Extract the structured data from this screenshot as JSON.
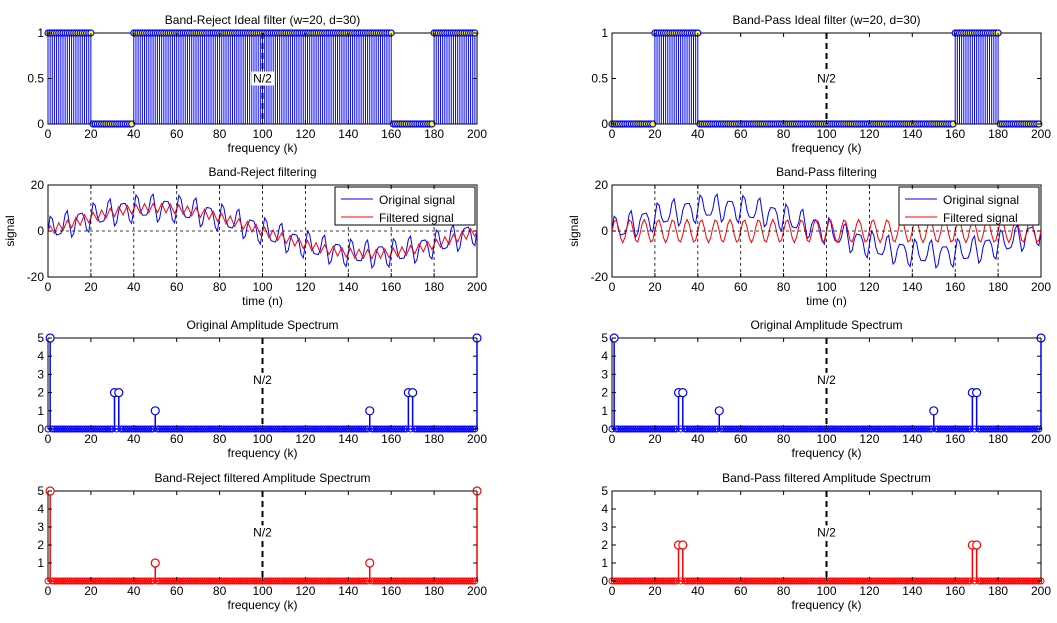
{
  "chart_data": [
    {
      "type": "stem",
      "id": "br-filter",
      "title": "Band-Reject Ideal filter (w=20, d=30)",
      "xlabel": "frequency (k)",
      "ylabel": "",
      "xlim": [
        0,
        200
      ],
      "ylim": [
        0,
        1
      ],
      "xticks": [
        0,
        20,
        40,
        60,
        80,
        100,
        120,
        140,
        160,
        180,
        200
      ],
      "yticks": [
        0,
        0.5,
        1
      ],
      "ytick_labels": [
        "0",
        "0.5",
        "1"
      ],
      "annotation": "N/2",
      "midline": 100,
      "color": "#0000ff",
      "marker_face": "#ffff00",
      "stem_rule": {
        "n_points": 200,
        "one_if_k_in": [
          [
            0,
            20
          ],
          [
            40,
            160
          ],
          [
            180,
            199
          ]
        ],
        "else": 0
      }
    },
    {
      "type": "stem",
      "id": "bp-filter",
      "title": "Band-Pass Ideal filter (w=20, d=30)",
      "xlabel": "frequency (k)",
      "ylabel": "",
      "xlim": [
        0,
        200
      ],
      "ylim": [
        0,
        1
      ],
      "xticks": [
        0,
        20,
        40,
        60,
        80,
        100,
        120,
        140,
        160,
        180,
        200
      ],
      "yticks": [
        0,
        0.5,
        1
      ],
      "ytick_labels": [
        "0",
        "0.5",
        "1"
      ],
      "annotation": "N/2",
      "midline": 100,
      "color": "#0000ff",
      "marker_face": "#ffff00",
      "stem_rule": {
        "n_points": 200,
        "one_if_k_in": [
          [
            20,
            40
          ],
          [
            160,
            180
          ]
        ],
        "else": 0
      }
    },
    {
      "type": "line",
      "id": "br-signal",
      "title": "Band-Reject filtering",
      "xlabel": "time (n)",
      "ylabel": "signal",
      "xlim": [
        0,
        200
      ],
      "ylim": [
        -20,
        20
      ],
      "xticks": [
        0,
        20,
        40,
        60,
        80,
        100,
        120,
        140,
        160,
        180,
        200
      ],
      "yticks": [
        -20,
        0,
        20
      ],
      "ytick_labels": [
        "-20",
        "0",
        "20"
      ],
      "grid": true,
      "legend_position": "top-right",
      "series": [
        {
          "name": "Original signal",
          "color": "#0000ff",
          "model": "10*sin(2*pi*n/200) + 5*sin(2*pi*30*n/200) + 2*sin(2*pi*50*n/200)"
        },
        {
          "name": "Filtered signal",
          "color": "#ff0000",
          "model": "10*sin(2*pi*n/200) + 2*sin(2*pi*50*n/200)"
        }
      ]
    },
    {
      "type": "line",
      "id": "bp-signal",
      "title": "Band-Pass filtering",
      "xlabel": "time (n)",
      "ylabel": "signal",
      "xlim": [
        0,
        200
      ],
      "ylim": [
        -20,
        20
      ],
      "xticks": [
        0,
        20,
        40,
        60,
        80,
        100,
        120,
        140,
        160,
        180,
        200
      ],
      "yticks": [
        -20,
        0,
        20
      ],
      "ytick_labels": [
        "-20",
        "0",
        "20"
      ],
      "grid": true,
      "legend_position": "top-right",
      "series": [
        {
          "name": "Original signal",
          "color": "#0000ff",
          "model": "10*sin(2*pi*n/200) + 5*sin(2*pi*30*n/200) + 2*sin(2*pi*50*n/200)"
        },
        {
          "name": "Filtered signal",
          "color": "#ff0000",
          "model": "5*sin(2*pi*30*n/200)"
        }
      ]
    },
    {
      "type": "stem",
      "id": "br-orig-spec",
      "title": "Original Amplitude Spectrum",
      "xlabel": "frequency (k)",
      "ylabel": "",
      "xlim": [
        0,
        200
      ],
      "ylim": [
        0,
        5
      ],
      "xticks": [
        0,
        20,
        40,
        60,
        80,
        100,
        120,
        140,
        160,
        180,
        200
      ],
      "yticks": [
        0,
        1,
        2,
        3,
        4,
        5
      ],
      "ytick_labels": [
        "0",
        "1",
        "2",
        "3",
        "4",
        "5"
      ],
      "annotation": "N/2",
      "midline": 100,
      "color": "#0000ff",
      "marker": "circle",
      "peaks": [
        [
          1,
          5
        ],
        [
          31,
          2
        ],
        [
          33,
          2
        ],
        [
          50,
          1
        ],
        [
          150,
          1
        ],
        [
          168,
          2
        ],
        [
          170,
          2
        ],
        [
          200,
          5
        ]
      ],
      "baseline_points": 200
    },
    {
      "type": "stem",
      "id": "bp-orig-spec",
      "title": "Original Amplitude Spectrum",
      "xlabel": "frequency (k)",
      "ylabel": "",
      "xlim": [
        0,
        200
      ],
      "ylim": [
        0,
        5
      ],
      "xticks": [
        0,
        20,
        40,
        60,
        80,
        100,
        120,
        140,
        160,
        180,
        200
      ],
      "yticks": [
        0,
        1,
        2,
        3,
        4,
        5
      ],
      "ytick_labels": [
        "0",
        "1",
        "2",
        "3",
        "4",
        "5"
      ],
      "annotation": "N/2",
      "midline": 100,
      "color": "#0000ff",
      "marker": "circle",
      "peaks": [
        [
          1,
          5
        ],
        [
          31,
          2
        ],
        [
          33,
          2
        ],
        [
          50,
          1
        ],
        [
          150,
          1
        ],
        [
          168,
          2
        ],
        [
          170,
          2
        ],
        [
          200,
          5
        ]
      ],
      "baseline_points": 200
    },
    {
      "type": "stem",
      "id": "br-filt-spec",
      "title": "Band-Reject filtered Amplitude Spectrum",
      "xlabel": "frequency (k)",
      "ylabel": "",
      "xlim": [
        0,
        200
      ],
      "ylim": [
        0,
        5
      ],
      "xticks": [
        0,
        20,
        40,
        60,
        80,
        100,
        120,
        140,
        160,
        180,
        200
      ],
      "yticks": [
        1,
        2,
        3,
        4,
        5
      ],
      "ytick_labels": [
        "1",
        "2",
        "3",
        "4",
        "5"
      ],
      "annotation": "N/2",
      "midline": 100,
      "color": "#ff0000",
      "marker": "circle",
      "peaks": [
        [
          1,
          5
        ],
        [
          50,
          1
        ],
        [
          150,
          1
        ],
        [
          200,
          5
        ]
      ],
      "baseline_points": 200
    },
    {
      "type": "stem",
      "id": "bp-filt-spec",
      "title": "Band-Pass filtered Amplitude Spectrum",
      "xlabel": "frequency (k)",
      "ylabel": "",
      "xlim": [
        0,
        200
      ],
      "ylim": [
        0,
        5
      ],
      "xticks": [
        0,
        20,
        40,
        60,
        80,
        100,
        120,
        140,
        160,
        180,
        200
      ],
      "yticks": [
        0,
        1,
        2,
        3,
        4,
        5
      ],
      "ytick_labels": [
        "0",
        "1",
        "2",
        "3",
        "4",
        "5"
      ],
      "annotation": "N/2",
      "midline": 100,
      "color": "#ff0000",
      "marker": "circle",
      "peaks": [
        [
          31,
          2
        ],
        [
          33,
          2
        ],
        [
          168,
          2
        ],
        [
          170,
          2
        ]
      ],
      "baseline_points": 200
    }
  ]
}
